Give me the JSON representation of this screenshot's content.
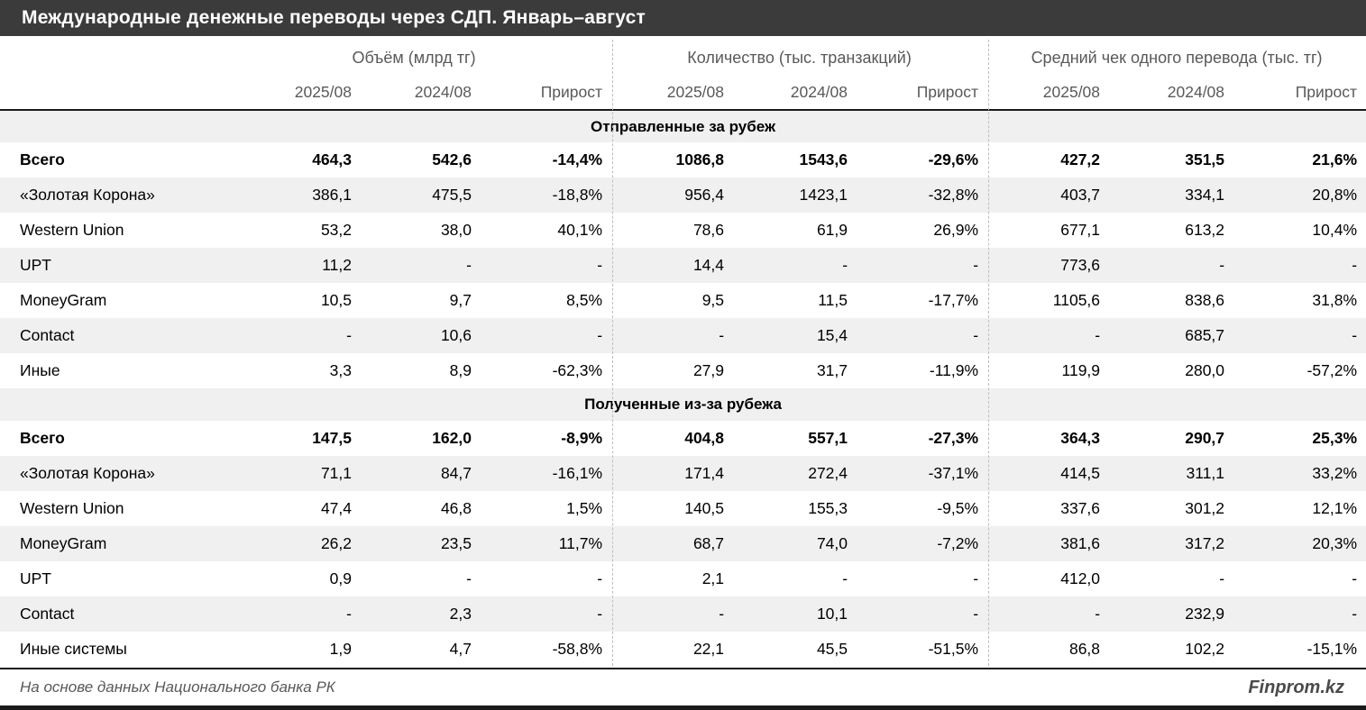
{
  "chart_data": {
    "type": "table",
    "title": "Международные денежные переводы через СДП. Январь–август",
    "column_groups": [
      {
        "label": "Объём (млрд тг)"
      },
      {
        "label": "Количество (тыс. транзакций)"
      },
      {
        "label": "Средний чек одного перевода (тыс. тг)"
      }
    ],
    "sub_columns": [
      "2025/08",
      "2024/08",
      "Прирост"
    ],
    "sections": [
      {
        "title": "Отправленные за рубеж",
        "rows": [
          {
            "label": "Всего",
            "bold": true,
            "values": [
              "464,3",
              "542,6",
              "-14,4%",
              "1086,8",
              "1543,6",
              "-29,6%",
              "427,2",
              "351,5",
              "21,6%"
            ]
          },
          {
            "label": "«Золотая Корона»",
            "bold": false,
            "values": [
              "386,1",
              "475,5",
              "-18,8%",
              "956,4",
              "1423,1",
              "-32,8%",
              "403,7",
              "334,1",
              "20,8%"
            ]
          },
          {
            "label": "Western Union",
            "bold": false,
            "values": [
              "53,2",
              "38,0",
              "40,1%",
              "78,6",
              "61,9",
              "26,9%",
              "677,1",
              "613,2",
              "10,4%"
            ]
          },
          {
            "label": "UPT",
            "bold": false,
            "values": [
              "11,2",
              "-",
              "-",
              "14,4",
              "-",
              "-",
              "773,6",
              "-",
              "-"
            ]
          },
          {
            "label": "MoneyGram",
            "bold": false,
            "values": [
              "10,5",
              "9,7",
              "8,5%",
              "9,5",
              "11,5",
              "-17,7%",
              "1105,6",
              "838,6",
              "31,8%"
            ]
          },
          {
            "label": "Contact",
            "bold": false,
            "values": [
              "-",
              "10,6",
              "-",
              "-",
              "15,4",
              "-",
              "-",
              "685,7",
              "-"
            ]
          },
          {
            "label": "Иные",
            "bold": false,
            "values": [
              "3,3",
              "8,9",
              "-62,3%",
              "27,9",
              "31,7",
              "-11,9%",
              "119,9",
              "280,0",
              "-57,2%"
            ]
          }
        ]
      },
      {
        "title": "Полученные из-за рубежа",
        "rows": [
          {
            "label": "Всего",
            "bold": true,
            "values": [
              "147,5",
              "162,0",
              "-8,9%",
              "404,8",
              "557,1",
              "-27,3%",
              "364,3",
              "290,7",
              "25,3%"
            ]
          },
          {
            "label": "«Золотая Корона»",
            "bold": false,
            "values": [
              "71,1",
              "84,7",
              "-16,1%",
              "171,4",
              "272,4",
              "-37,1%",
              "414,5",
              "311,1",
              "33,2%"
            ]
          },
          {
            "label": "Western Union",
            "bold": false,
            "values": [
              "47,4",
              "46,8",
              "1,5%",
              "140,5",
              "155,3",
              "-9,5%",
              "337,6",
              "301,2",
              "12,1%"
            ]
          },
          {
            "label": "MoneyGram",
            "bold": false,
            "values": [
              "26,2",
              "23,5",
              "11,7%",
              "68,7",
              "74,0",
              "-7,2%",
              "381,6",
              "317,2",
              "20,3%"
            ]
          },
          {
            "label": "UPT",
            "bold": false,
            "values": [
              "0,9",
              "-",
              "-",
              "2,1",
              "-",
              "-",
              "412,0",
              "-",
              "-"
            ]
          },
          {
            "label": "Contact",
            "bold": false,
            "values": [
              "-",
              "2,3",
              "-",
              "-",
              "10,1",
              "-",
              "-",
              "232,9",
              "-"
            ]
          },
          {
            "label": "Иные системы",
            "bold": false,
            "values": [
              "1,9",
              "4,7",
              "-58,8%",
              "22,1",
              "45,5",
              "-51,5%",
              "86,8",
              "102,2",
              "-15,1%"
            ]
          }
        ]
      }
    ]
  },
  "footer": {
    "source": "На основе данных Национального банка РК",
    "brand": "Finprom.kz"
  },
  "colors": {
    "title_bar_bg": "#3b3b3b",
    "title_text": "#ffffff",
    "header_text": "#595959",
    "row_alt_bg": "#f0f0f0",
    "section_bg": "#f0f0f0",
    "rule_dark": "#1a1a1a",
    "dashed_separator": "#bdbdbd"
  }
}
